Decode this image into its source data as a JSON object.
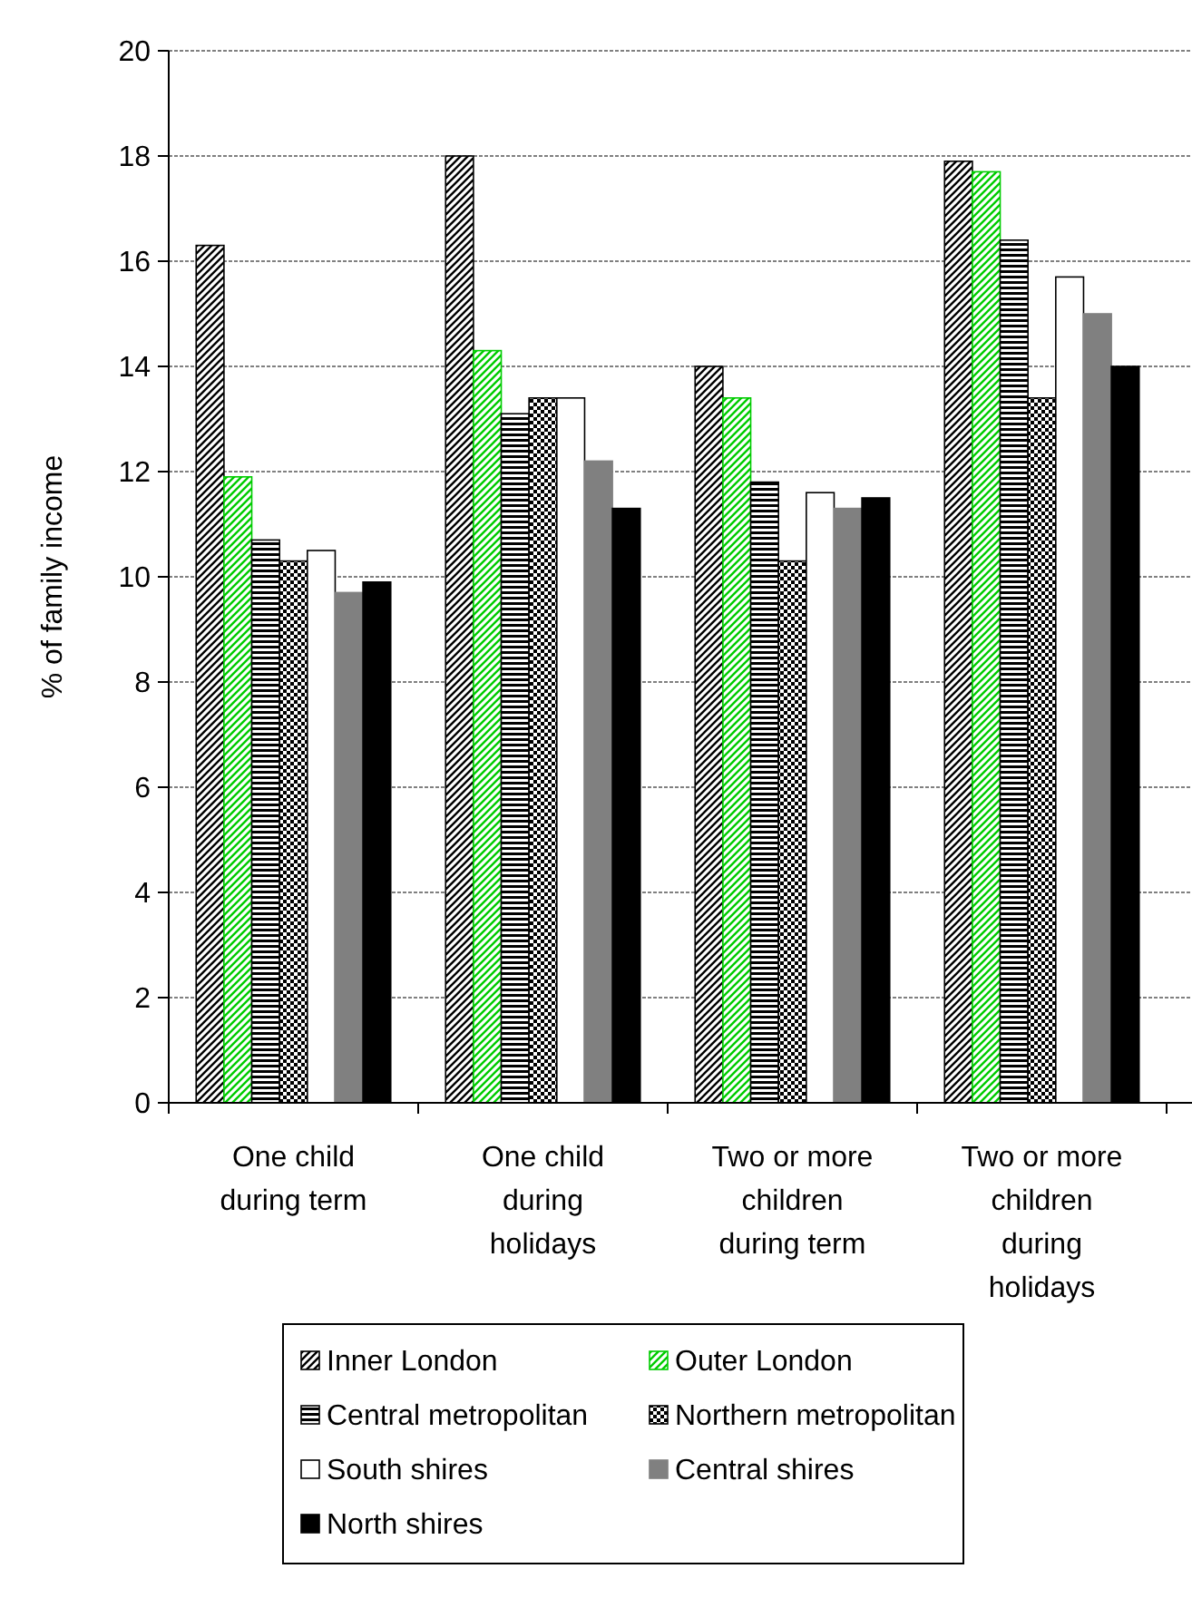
{
  "chart_data": {
    "type": "bar",
    "ylabel": "% of family income",
    "categories": [
      "One child during term",
      "One child during holidays",
      "Two or more children during term",
      "Two or more children during holidays"
    ],
    "series": [
      {
        "name": "Inner London",
        "color": "#000000",
        "values": [
          16.3,
          18.0,
          14.0,
          17.9
        ]
      },
      {
        "name": "Outer London",
        "color": "#00cc00",
        "values": [
          11.9,
          14.3,
          13.4,
          17.7
        ]
      },
      {
        "name": "Central metropolitan",
        "color": "#000000",
        "values": [
          10.7,
          13.1,
          11.8,
          16.4
        ]
      },
      {
        "name": "Northern metropolitan",
        "color": "#000000",
        "values": [
          10.3,
          13.4,
          10.3,
          13.4
        ]
      },
      {
        "name": "South shires",
        "color": "#ffffff",
        "values": [
          10.5,
          13.4,
          11.6,
          15.7
        ]
      },
      {
        "name": "Central shires",
        "color": "#808080",
        "values": [
          9.7,
          12.2,
          11.3,
          15.0
        ]
      },
      {
        "name": "North shires",
        "color": "#000000",
        "values": [
          9.9,
          11.3,
          11.5,
          14.0
        ]
      }
    ],
    "ylim": [
      0,
      20
    ],
    "yticks": [
      0,
      2,
      4,
      6,
      8,
      10,
      12,
      14,
      16,
      18,
      20
    ],
    "grid": "y",
    "legend": "bottom"
  }
}
